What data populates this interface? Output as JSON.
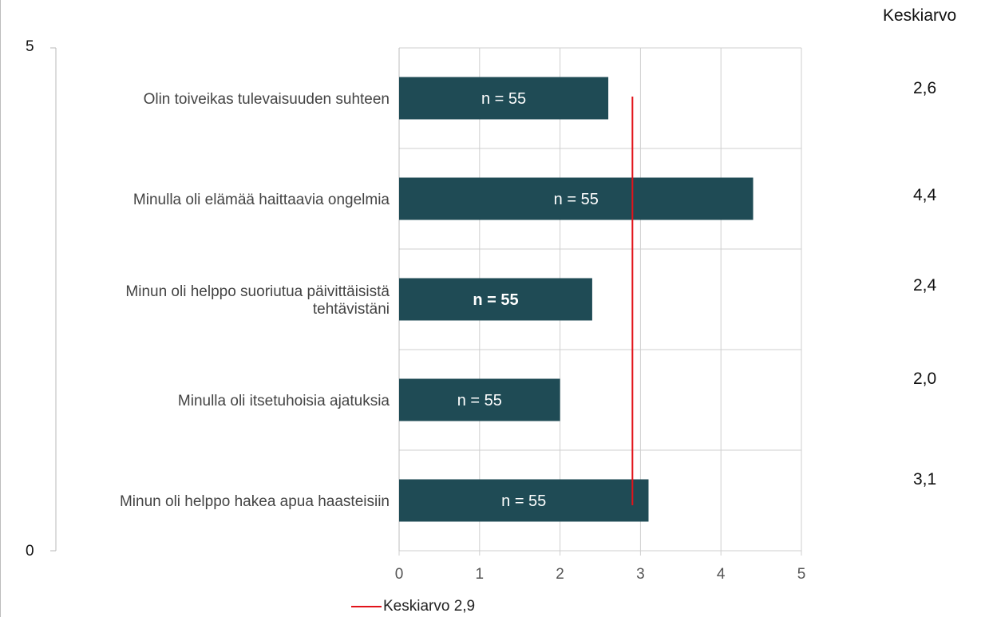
{
  "header_fragment": "",
  "side_axis": {
    "top_label": "5",
    "bottom_label": "0"
  },
  "mean_column": {
    "header": "Keskiarvo",
    "values": [
      "2,6",
      "4,4",
      "2,4",
      "2,0",
      "3,1"
    ]
  },
  "legend": {
    "label": "Keskiarvo 2,9",
    "color": "#e2131a"
  },
  "colors": {
    "bar": "#1f4b55",
    "bar_text": "#ffffff",
    "grid": "#cfcfcf",
    "mean_line": "#e2131a",
    "axis_text": "#555555"
  },
  "chart_data": {
    "type": "bar",
    "orientation": "horizontal",
    "categories": [
      "Olin toiveikas tulevaisuuden suhteen",
      "Minulla oli elämää haittaavia ongelmia",
      "Minun oli helppo suoriutua päivittäisistä tehtävistäni",
      "Minulla oli itsetuhoisia ajatuksia",
      "Minun oli helppo hakea apua haasteisiin"
    ],
    "category_lines": [
      [
        "Olin toiveikas tulevaisuuden suhteen"
      ],
      [
        "Minulla oli elämää haittaavia ongelmia"
      ],
      [
        "Minun oli helppo suoriutua päivittäisistä",
        "tehtävistäni"
      ],
      [
        "Minulla oli itsetuhoisia ajatuksia"
      ],
      [
        "Minun oli helppo hakea apua haasteisiin"
      ]
    ],
    "values": [
      2.6,
      4.4,
      2.4,
      2.0,
      3.1
    ],
    "data_labels": [
      "n = 55",
      "n = 55",
      "n = 55",
      "n = 55",
      "n = 55"
    ],
    "bold_labels": [
      false,
      false,
      true,
      false,
      false
    ],
    "xlim": [
      0,
      5
    ],
    "xticks": [
      0,
      1,
      2,
      3,
      4,
      5
    ],
    "mean_line": {
      "value": 2.9,
      "label": "Keskiarvo 2,9"
    },
    "grid": true,
    "legend_position": "bottom"
  }
}
